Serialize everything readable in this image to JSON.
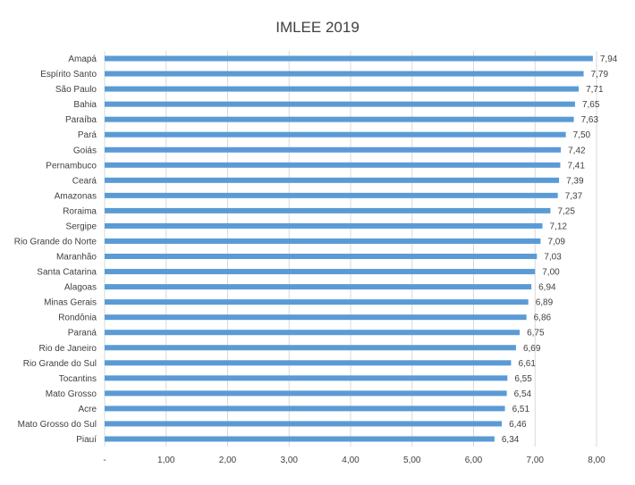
{
  "chart_data": {
    "type": "bar",
    "orientation": "horizontal",
    "title": "IMLEE 2019",
    "categories": [
      "Amapá",
      "Espírito Santo",
      "São Paulo",
      "Bahia",
      "Paraíba",
      "Pará",
      "Goiás",
      "Pernambuco",
      "Ceará",
      "Amazonas",
      "Roraima",
      "Sergipe",
      "Rio Grande do Norte",
      "Maranhão",
      "Santa Catarina",
      "Alagoas",
      "Minas Gerais",
      "Rondônia",
      "Paraná",
      "Rio de Janeiro",
      "Rio Grande do Sul",
      "Tocantins",
      "Mato Grosso",
      "Acre",
      "Mato Grosso do Sul",
      "Piauí"
    ],
    "values": [
      7.94,
      7.79,
      7.71,
      7.65,
      7.63,
      7.5,
      7.42,
      7.41,
      7.39,
      7.37,
      7.25,
      7.12,
      7.09,
      7.03,
      7.0,
      6.94,
      6.89,
      6.86,
      6.75,
      6.69,
      6.61,
      6.55,
      6.54,
      6.51,
      6.46,
      6.34
    ],
    "value_labels": [
      "7,94",
      "7,79",
      "7,71",
      "7,65",
      "7,63",
      "7,50",
      "7,42",
      "7,41",
      "7,39",
      "7,37",
      "7,25",
      "7,12",
      "7,09",
      "7,03",
      "7,00",
      "6,94",
      "6,89",
      "6,86",
      "6,75",
      "6,69",
      "6,61",
      "6,55",
      "6,54",
      "6,51",
      "6,46",
      "6,34"
    ],
    "xlim": [
      0,
      8
    ],
    "xticks": [
      0,
      1,
      2,
      3,
      4,
      5,
      6,
      7,
      8
    ],
    "xtick_labels": [
      "-",
      "1,00",
      "2,00",
      "3,00",
      "4,00",
      "5,00",
      "6,00",
      "7,00",
      "8,00"
    ],
    "grid": true,
    "colors": {
      "bar": "#5b9bd5",
      "grid": "#d9d9d9",
      "text": "#404040"
    }
  }
}
